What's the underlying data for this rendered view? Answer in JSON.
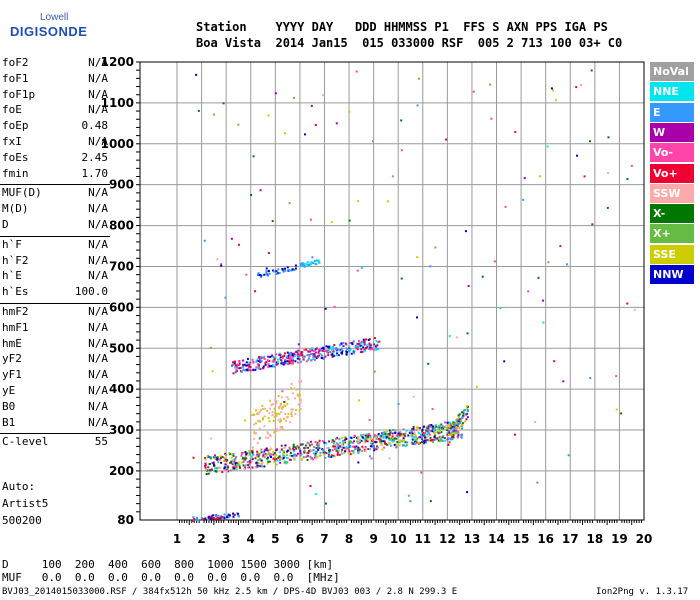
{
  "logo": {
    "line1": "Lowell",
    "line2": "DIGISONDE"
  },
  "header": {
    "row1": "Station    YYYY DAY   DDD HHMMSS P1  FFS S AXN PPS IGA PS",
    "row2": "Boa Vista  2014 Jan15  015 033000 RSF  005 2 713 100 03+ C0"
  },
  "params": [
    {
      "name": "foF2",
      "value": "N/A"
    },
    {
      "name": "foF1",
      "value": "N/A"
    },
    {
      "name": "foF1p",
      "value": "N/A"
    },
    {
      "name": "foE",
      "value": "N/A"
    },
    {
      "name": "foEp",
      "value": "0.48"
    },
    {
      "name": "fxI",
      "value": "N/A"
    },
    {
      "name": "foEs",
      "value": "2.45"
    },
    {
      "name": "fmin",
      "value": "1.70"
    },
    {
      "name": "MUF(D)",
      "value": "N/A"
    },
    {
      "name": "M(D)",
      "value": "N/A"
    },
    {
      "name": "D",
      "value": "N/A"
    },
    {
      "name": "h`F",
      "value": "N/A"
    },
    {
      "name": "h`F2",
      "value": "N/A"
    },
    {
      "name": "h`E",
      "value": "N/A"
    },
    {
      "name": "h`Es",
      "value": "100.0"
    },
    {
      "name": "hmF2",
      "value": "N/A"
    },
    {
      "name": "hmF1",
      "value": "N/A"
    },
    {
      "name": "hmE",
      "value": "N/A"
    },
    {
      "name": "yF2",
      "value": "N/A"
    },
    {
      "name": "yF1",
      "value": "N/A"
    },
    {
      "name": "yE",
      "value": "N/A"
    },
    {
      "name": "B0",
      "value": "N/A"
    },
    {
      "name": "B1",
      "value": "N/A"
    },
    {
      "name": "C-level",
      "value": "55"
    }
  ],
  "auto": {
    "label": "Auto:",
    "artist": "Artist5",
    "version": "500200"
  },
  "legend": [
    {
      "label": "NoVal",
      "color": "#a0a0a0"
    },
    {
      "label": "NNE",
      "color": "#00e5ee"
    },
    {
      "label": "E",
      "color": "#3399ff"
    },
    {
      "label": "W",
      "color": "#aa00aa"
    },
    {
      "label": "Vo-",
      "color": "#ff44aa"
    },
    {
      "label": "Vo+",
      "color": "#ee0033"
    },
    {
      "label": "SSW",
      "color": "#ffaaaa"
    },
    {
      "label": "X-",
      "color": "#007700"
    },
    {
      "label": "X+",
      "color": "#66bb44"
    },
    {
      "label": "SSE",
      "color": "#cccc00"
    },
    {
      "label": "NNW",
      "color": "#0000cc"
    }
  ],
  "mufTable": {
    "row1": "D     100  200  400  600  800  1000 1500 3000 [km]",
    "row2": "MUF   0.0  0.0  0.0  0.0  0.0  0.0  0.0  0.0  [MHz]"
  },
  "footer": {
    "left": "BVJ03_2014015033000.RSF / 384fx512h 50 kHz 2.5 km / DPS-4D BVJ03 003 / 2.8 N 299.3 E",
    "right": "Ion2Png v. 1.3.17"
  },
  "chart_data": {
    "type": "scatter",
    "x": [
      1,
      2,
      3,
      4,
      5,
      6,
      7,
      8,
      9,
      10,
      11,
      12,
      13,
      14,
      15,
      16,
      17,
      18,
      19,
      20
    ],
    "y_ticks": [
      80,
      200,
      300,
      400,
      500,
      600,
      700,
      800,
      900,
      1000,
      1100,
      1200
    ],
    "xlim": [
      1,
      20
    ],
    "ylim": [
      80,
      1200
    ],
    "grid": true,
    "xlabel": "",
    "ylabel": ""
  }
}
